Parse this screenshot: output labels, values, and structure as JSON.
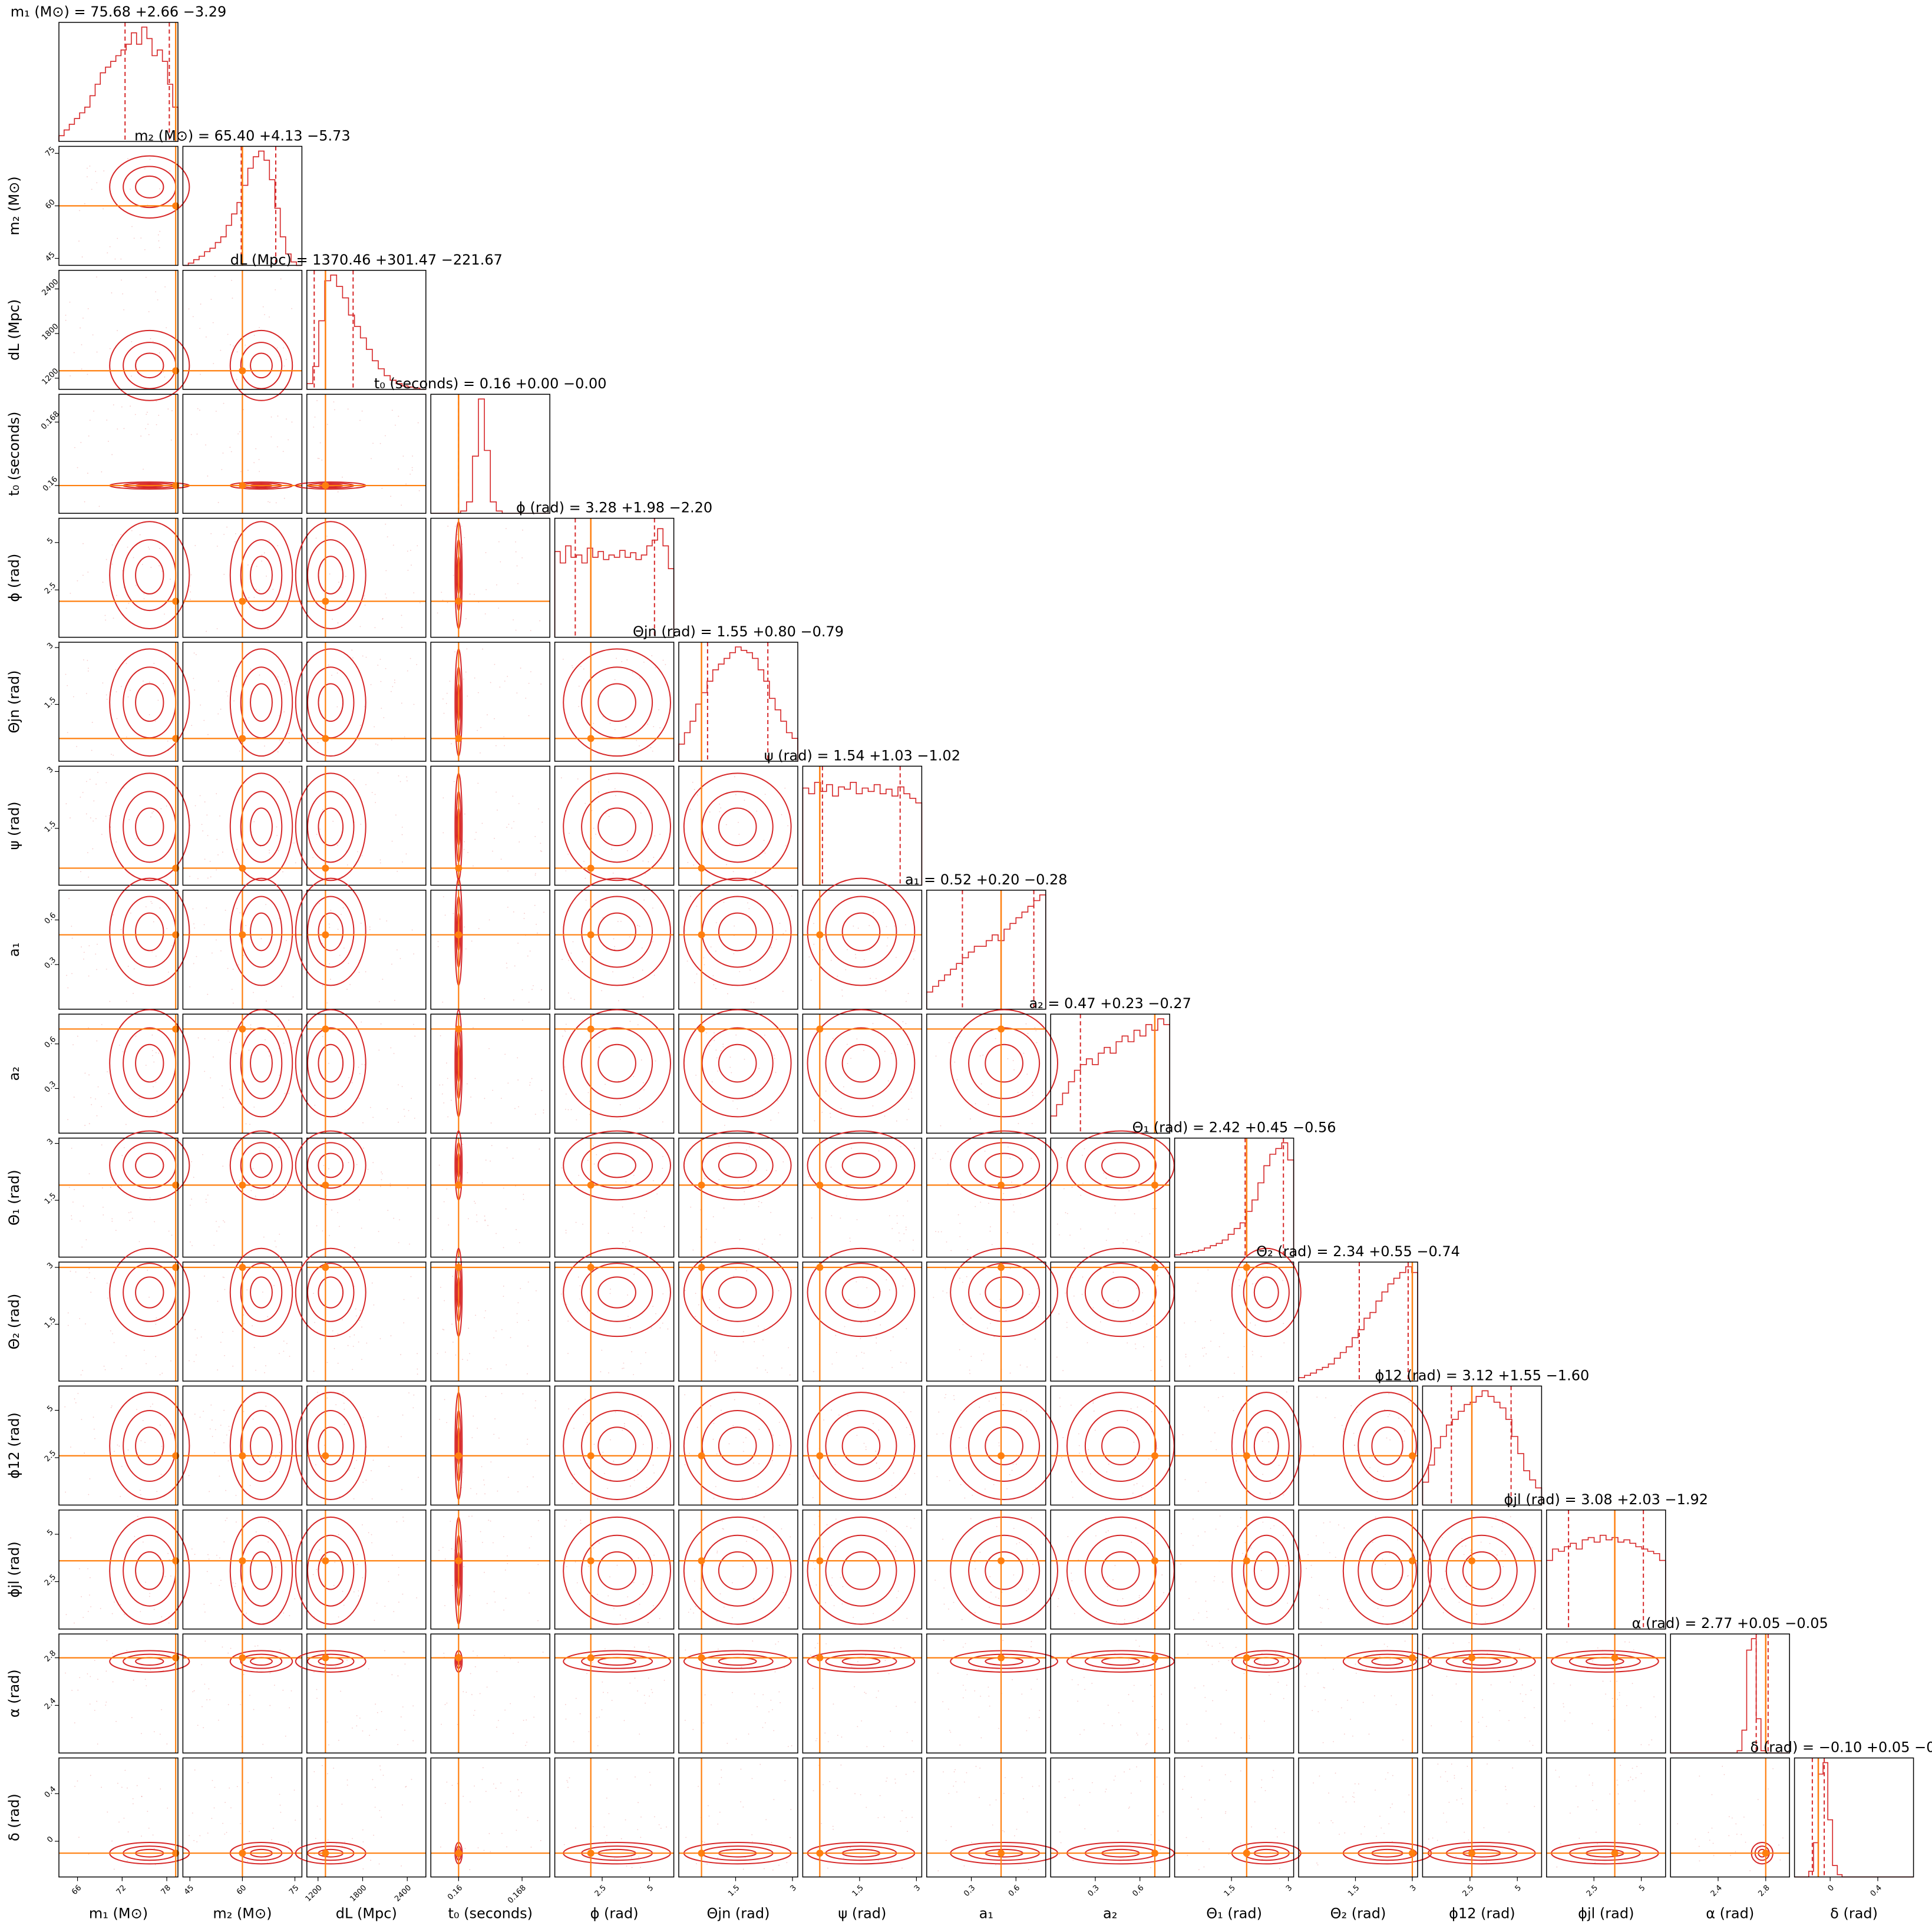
{
  "colors": {
    "contour": "#d62728",
    "truth": "#ff7f0e",
    "axes": "#000000",
    "background": "#ffffff"
  },
  "chart_data": {
    "type": "corner",
    "grid": false,
    "parameters": [
      {
        "label": "m₁ (M⊙)",
        "title": "m₁ (M⊙) = 75.68 +2.66 −3.29",
        "median": 75.68,
        "err_plus": 2.66,
        "err_minus": 3.29,
        "truth": 79.2,
        "range": [
          63.5,
          79.5
        ],
        "ticks": [
          66,
          72,
          78
        ],
        "hist": [
          0.05,
          0.1,
          0.15,
          0.2,
          0.25,
          0.3,
          0.4,
          0.5,
          0.6,
          0.65,
          0.7,
          0.75,
          0.8,
          0.85,
          0.95,
          0.85,
          1.0,
          0.9,
          0.75,
          0.8,
          0.7,
          0.5,
          0.3
        ]
      },
      {
        "label": "m₂ (M⊙)",
        "title": "m₂ (M⊙) = 65.40 +4.13 −5.73",
        "median": 65.4,
        "err_plus": 4.13,
        "err_minus": 5.73,
        "truth": 60,
        "range": [
          43,
          77
        ],
        "ticks": [
          45,
          60,
          75
        ],
        "hist": [
          0.0,
          0.02,
          0.05,
          0.08,
          0.12,
          0.15,
          0.2,
          0.25,
          0.35,
          0.45,
          0.55,
          0.7,
          0.85,
          0.95,
          1.0,
          0.92,
          0.75,
          0.5,
          0.25,
          0.1,
          0.03,
          0.0
        ]
      },
      {
        "label": "dL (Mpc)",
        "title": "dL (Mpc) = 1370.46 +301.47 −221.67",
        "median": 1370.46,
        "err_plus": 301.47,
        "err_minus": 221.67,
        "truth": 1300,
        "range": [
          1050,
          2650
        ],
        "ticks": [
          1200,
          1800,
          2400
        ],
        "hist": [
          0.05,
          0.2,
          0.6,
          0.95,
          1.0,
          0.9,
          0.8,
          0.65,
          0.55,
          0.45,
          0.35,
          0.25,
          0.18,
          0.12,
          0.08,
          0.05,
          0.03,
          0.02,
          0.01,
          0.0
        ]
      },
      {
        "label": "t₀ (seconds)",
        "title": "t₀ (seconds) = 0.16 +0.00 −0.00",
        "median": 0.16,
        "err_plus": 0.0,
        "err_minus": 0.0,
        "truth": 0.16,
        "range": [
          0.1565,
          0.1715
        ],
        "ticks": [
          0.16,
          0.168
        ],
        "hist": [
          0.0,
          0.0,
          0.0,
          0.0,
          0.0,
          0.02,
          0.1,
          0.5,
          1.0,
          0.55,
          0.1,
          0.02,
          0.0,
          0.0,
          0.0,
          0.0,
          0.0,
          0.0,
          0.0,
          0.0
        ]
      },
      {
        "label": "ϕ (rad)",
        "title": "ϕ (rad) = 3.28 +1.98 −2.20",
        "median": 3.28,
        "err_plus": 1.98,
        "err_minus": 2.2,
        "truth": 1.9,
        "range": [
          0,
          6.28
        ],
        "ticks": [
          2.5,
          5.0
        ],
        "hist": [
          0.75,
          0.65,
          0.8,
          0.7,
          0.72,
          0.65,
          0.78,
          0.7,
          0.75,
          0.68,
          0.72,
          0.7,
          0.76,
          0.7,
          0.74,
          0.68,
          0.72,
          0.8,
          0.85,
          0.95,
          0.8,
          0.6
        ]
      },
      {
        "label": "Θjn (rad)",
        "title": "Θjn (rad) = 1.55 +0.80 −0.79",
        "median": 1.55,
        "err_plus": 0.8,
        "err_minus": 0.79,
        "truth": 0.6,
        "range": [
          0,
          3.14
        ],
        "ticks": [
          1.5,
          3.0
        ],
        "hist": [
          0.15,
          0.25,
          0.35,
          0.5,
          0.6,
          0.7,
          0.8,
          0.85,
          0.9,
          0.95,
          1.0,
          0.97,
          0.95,
          0.9,
          0.8,
          0.7,
          0.55,
          0.45,
          0.35,
          0.25,
          0.2
        ]
      },
      {
        "label": "ψ (rad)",
        "title": "ψ (rad) = 1.54 +1.03 −1.02",
        "median": 1.54,
        "err_plus": 1.03,
        "err_minus": 1.02,
        "truth": 0.45,
        "range": [
          0,
          3.14
        ],
        "ticks": [
          1.5,
          3.0
        ],
        "hist": [
          0.85,
          0.8,
          0.9,
          0.82,
          0.88,
          0.78,
          0.86,
          0.84,
          0.9,
          0.8,
          0.85,
          0.82,
          0.88,
          0.8,
          0.84,
          0.78,
          0.86,
          0.8,
          0.76,
          0.72
        ]
      },
      {
        "label": "a₁",
        "title": "a₁ = 0.52 +0.20 −0.28",
        "median": 0.52,
        "err_plus": 0.2,
        "err_minus": 0.28,
        "truth": 0.5,
        "range": [
          0,
          0.8
        ],
        "ticks": [
          0.3,
          0.6
        ],
        "hist": [
          0.15,
          0.2,
          0.25,
          0.3,
          0.35,
          0.4,
          0.45,
          0.5,
          0.55,
          0.55,
          0.6,
          0.65,
          0.6,
          0.7,
          0.75,
          0.8,
          0.85,
          0.9,
          0.95,
          1.0
        ]
      },
      {
        "label": "a₂",
        "title": "a₂ = 0.47 +0.23 −0.27",
        "median": 0.47,
        "err_plus": 0.23,
        "err_minus": 0.27,
        "truth": 0.7,
        "range": [
          0,
          0.8
        ],
        "ticks": [
          0.3,
          0.6
        ],
        "hist": [
          0.15,
          0.25,
          0.35,
          0.45,
          0.55,
          0.6,
          0.65,
          0.6,
          0.7,
          0.75,
          0.7,
          0.8,
          0.85,
          0.8,
          0.9,
          0.85,
          0.95,
          0.9,
          1.0,
          0.95
        ]
      },
      {
        "label": "Θ₁ (rad)",
        "title": "Θ₁ (rad) = 2.42 +0.45 −0.56",
        "median": 2.42,
        "err_plus": 0.45,
        "err_minus": 0.56,
        "truth": 1.9,
        "range": [
          0,
          3.14
        ],
        "ticks": [
          1.5,
          3.0
        ],
        "hist": [
          0.02,
          0.03,
          0.04,
          0.05,
          0.06,
          0.08,
          0.1,
          0.12,
          0.15,
          0.2,
          0.25,
          0.3,
          0.4,
          0.5,
          0.65,
          0.8,
          0.9,
          0.95,
          1.0,
          0.85
        ]
      },
      {
        "label": "Θ₂ (rad)",
        "title": "Θ₂ (rad) = 2.34 +0.55 −0.74",
        "median": 2.34,
        "err_plus": 0.55,
        "err_minus": 0.74,
        "truth": 3.0,
        "range": [
          0,
          3.14
        ],
        "ticks": [
          1.5,
          3.0
        ],
        "hist": [
          0.03,
          0.05,
          0.07,
          0.1,
          0.12,
          0.15,
          0.2,
          0.25,
          0.3,
          0.38,
          0.45,
          0.55,
          0.6,
          0.7,
          0.78,
          0.85,
          0.9,
          0.95,
          1.0,
          0.95
        ]
      },
      {
        "label": "ϕ12 (rad)",
        "title": "ϕ12 (rad) = 3.12 +1.55 −1.60",
        "median": 3.12,
        "err_plus": 1.55,
        "err_minus": 1.6,
        "truth": 2.6,
        "range": [
          0,
          6.28
        ],
        "ticks": [
          2.5,
          5.0
        ],
        "hist": [
          0.2,
          0.35,
          0.5,
          0.6,
          0.7,
          0.75,
          0.82,
          0.88,
          0.9,
          0.95,
          1.0,
          0.95,
          0.9,
          0.85,
          0.75,
          0.6,
          0.45,
          0.3,
          0.22,
          0.15
        ]
      },
      {
        "label": "ϕjl (rad)",
        "title": "ϕjl (rad) = 3.08 +2.03 −1.92",
        "median": 3.08,
        "err_plus": 2.03,
        "err_minus": 1.92,
        "truth": 3.6,
        "range": [
          0,
          6.28
        ],
        "ticks": [
          2.5,
          5.0
        ],
        "hist": [
          0.6,
          0.7,
          0.68,
          0.72,
          0.75,
          0.7,
          0.78,
          0.8,
          0.76,
          0.82,
          0.78,
          0.8,
          0.76,
          0.78,
          0.75,
          0.72,
          0.7,
          0.68,
          0.66,
          0.6
        ]
      },
      {
        "label": "α (rad)",
        "title": "α (rad) = 2.77 +0.05 −0.05",
        "median": 2.77,
        "err_plus": 0.05,
        "err_minus": 0.05,
        "truth": 2.8,
        "range": [
          2.0,
          3.0
        ],
        "ticks": [
          2.4,
          2.8
        ],
        "hist": [
          0,
          0,
          0,
          0,
          0,
          0,
          0,
          0,
          0,
          0,
          0,
          0,
          0,
          0,
          0.02,
          0.2,
          0.9,
          1.0,
          0.3,
          0.02,
          0,
          0,
          0,
          0,
          0
        ]
      },
      {
        "label": "δ (rad)",
        "title": "δ (rad) = −0.10 +0.05 −0.05",
        "median": -0.1,
        "err_plus": 0.05,
        "err_minus": 0.05,
        "truth": -0.1,
        "range": [
          -0.3,
          0.7
        ],
        "ticks": [
          0.0,
          0.4
        ],
        "hist": [
          0,
          0,
          0,
          0.05,
          0.3,
          0.9,
          1.0,
          0.5,
          0.1,
          0.02,
          0,
          0,
          0,
          0,
          0,
          0,
          0,
          0,
          0,
          0,
          0,
          0,
          0,
          0,
          0
        ]
      }
    ]
  }
}
